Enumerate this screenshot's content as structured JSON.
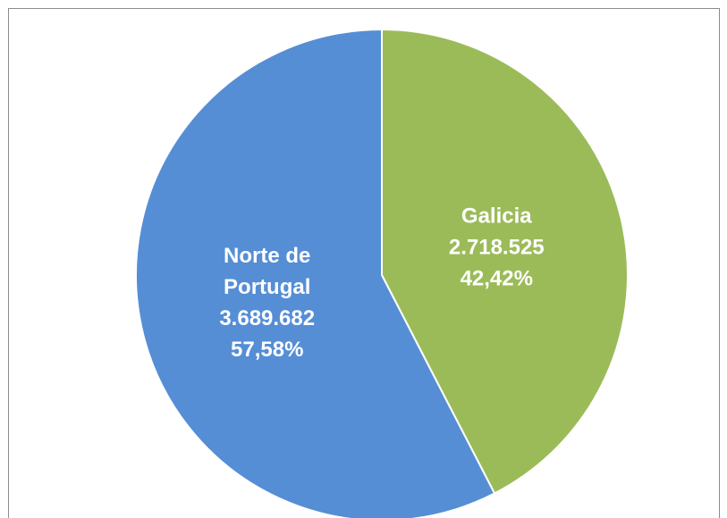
{
  "chart_data": {
    "type": "pie",
    "categories": [
      "Galicia",
      "Norte de Portugal"
    ],
    "values": [
      2718525,
      3689682
    ],
    "value_labels": [
      "2.718.525",
      "3.689.682"
    ],
    "percentages": [
      42.42,
      57.58
    ],
    "percentage_labels": [
      "42,42%",
      "57,58%"
    ],
    "colors": [
      "#9bbb59",
      "#558ed5"
    ]
  }
}
